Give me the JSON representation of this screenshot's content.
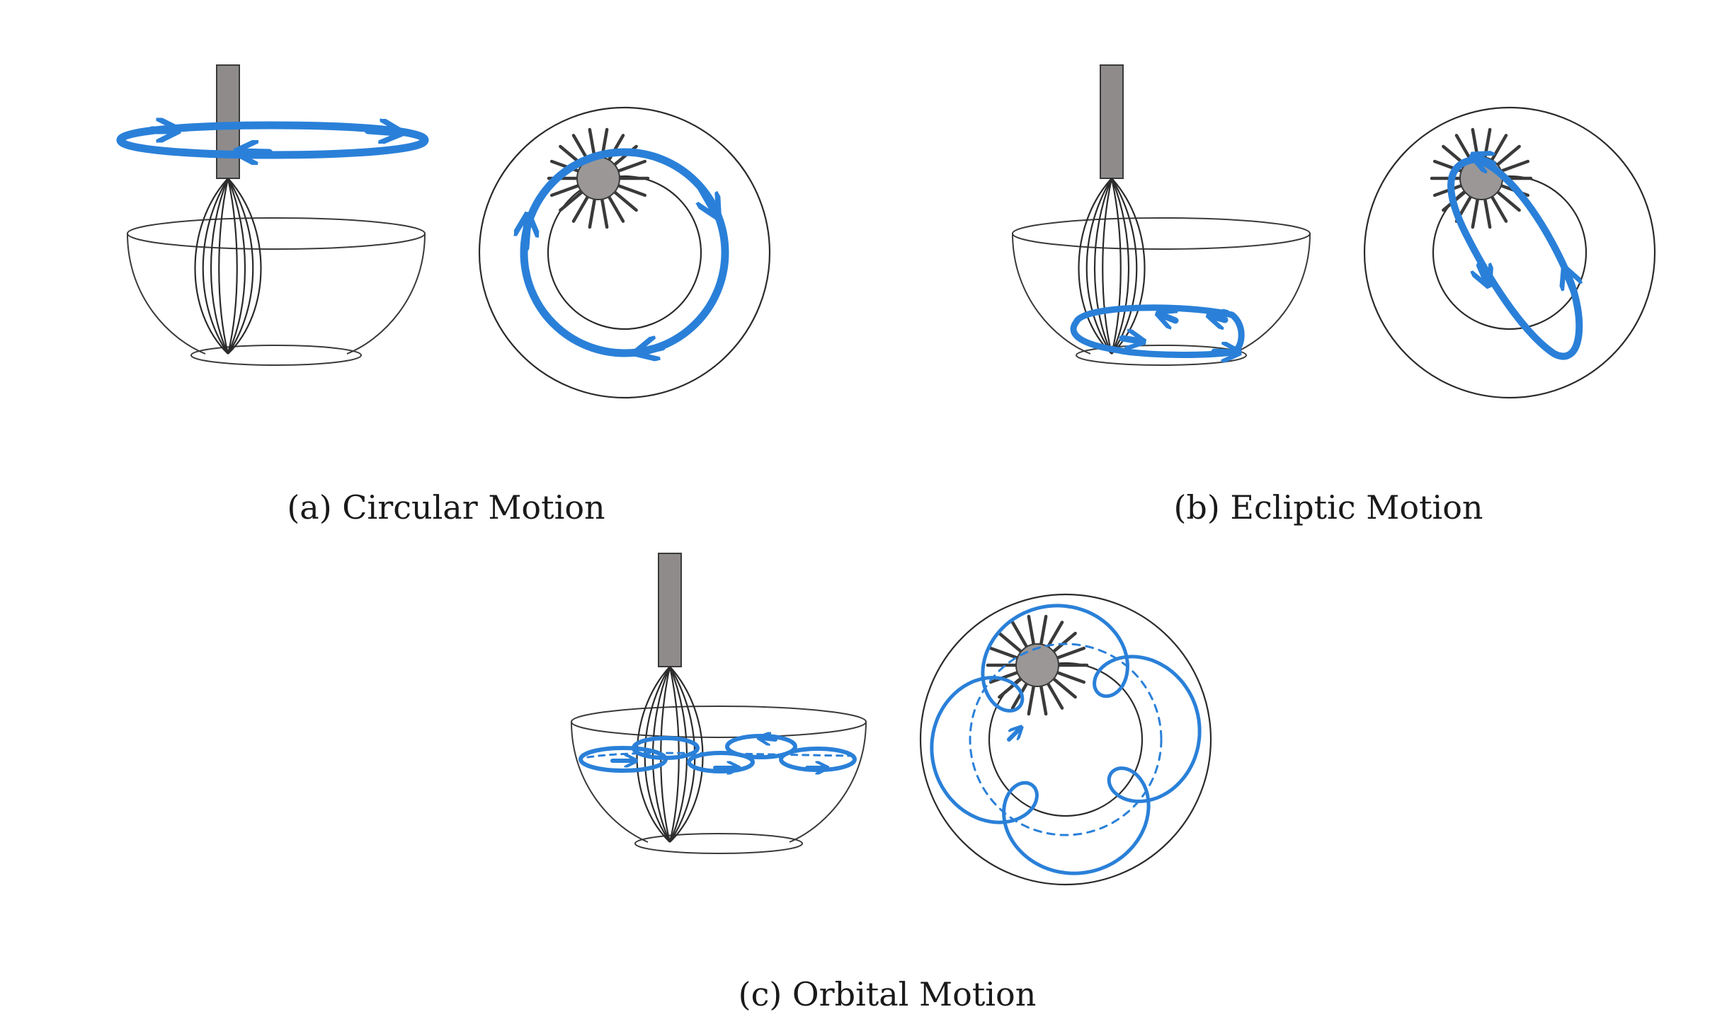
{
  "figure": {
    "panels": [
      {
        "id": "a",
        "caption": "(a) Circular Motion",
        "motion": "circular"
      },
      {
        "id": "b",
        "caption": "(b) Ecliptic Motion",
        "motion": "ecliptic"
      },
      {
        "id": "c",
        "caption": "(c) Orbital Motion",
        "motion": "orbital"
      }
    ],
    "colors": {
      "motion_path": "#2a80d8",
      "outline": "#2b2b2b",
      "handle_fill": "#8f8b8b",
      "whisk_head_fill": "#9b9797"
    }
  }
}
